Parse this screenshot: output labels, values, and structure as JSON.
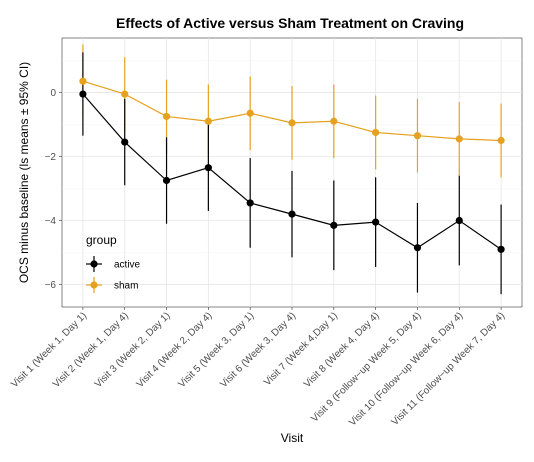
{
  "chart_data": {
    "type": "line",
    "title": "Effects of Active versus Sham Treatment on Craving",
    "xlabel": "Visit",
    "ylabel": "OCS minus baseline (ls means ± 95% CI)",
    "categories": [
      "Visit 1 (Week 1, Day 1)",
      "Visit 2 (Week 1, Day 4)",
      "Visit 3 (Week 2, Day 1)",
      "Visit 4 (Week 2, Day 4)",
      "Visit 5 (Week 3, Day 1)",
      "Visit 6 (Week 3, Day 4)",
      "Visit 7 (Week 4,Day 1)",
      "Visit 8 (Week 4, Day 4)",
      "Visit 9 (Follow−up Week 5, Day 4)",
      "Visit 10 (Follow−up Week 6, Day 4)",
      "Visit 11 (Follow−up Week 7, Day 4)"
    ],
    "ylim": [
      -6.7,
      1.7
    ],
    "yticks": [
      0,
      -2,
      -4,
      -6
    ],
    "ytick_labels": [
      "0",
      "−2",
      "−4",
      "−6"
    ],
    "grid": true,
    "legend": {
      "title": "group",
      "placement": "inside-left"
    },
    "series": [
      {
        "name": "active",
        "color": "#000000",
        "values": [
          -0.05,
          -1.55,
          -2.75,
          -2.35,
          -3.45,
          -3.8,
          -4.15,
          -4.05,
          -4.85,
          -4.0,
          -4.9
        ],
        "lower": [
          -1.35,
          -2.9,
          -4.1,
          -3.7,
          -4.85,
          -5.15,
          -5.55,
          -5.45,
          -6.25,
          -5.4,
          -6.3
        ],
        "upper": [
          1.25,
          -0.2,
          -1.4,
          -1.0,
          -2.05,
          -2.45,
          -2.75,
          -2.65,
          -3.45,
          -2.6,
          -3.5
        ]
      },
      {
        "name": "sham",
        "color": "#E6A120",
        "values": [
          0.35,
          -0.05,
          -0.75,
          -0.9,
          -0.65,
          -0.95,
          -0.9,
          -1.25,
          -1.35,
          -1.45,
          -1.5
        ],
        "lower": [
          -0.8,
          -1.2,
          -1.9,
          -2.05,
          -1.8,
          -2.1,
          -2.05,
          -2.4,
          -2.5,
          -2.6,
          -2.65
        ],
        "upper": [
          1.5,
          1.1,
          0.4,
          0.25,
          0.5,
          0.2,
          0.25,
          -0.1,
          -0.2,
          -0.3,
          -0.35
        ]
      }
    ]
  }
}
